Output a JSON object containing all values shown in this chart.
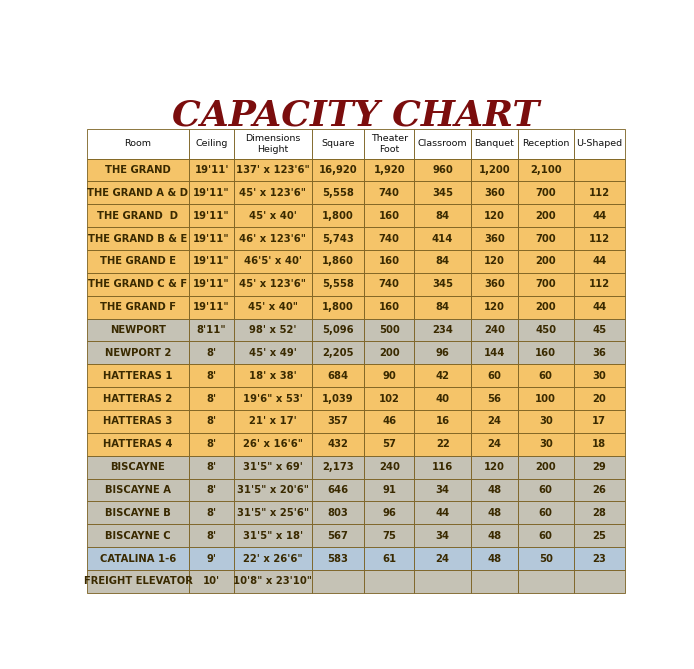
{
  "title": "CAPACITY CHART",
  "title_color": "#7B0D0D",
  "title_fontsize": 26,
  "header_col_names": [
    "Room",
    "Ceiling",
    "Dimensions\nHeight",
    "Square",
    "Theater\nFoot",
    "Classroom",
    "Banquet",
    "Reception",
    "U-Shaped"
  ],
  "col_widths": [
    1.65,
    0.72,
    1.25,
    0.85,
    0.8,
    0.92,
    0.75,
    0.9,
    0.82
  ],
  "rows": [
    [
      "THE GRAND",
      "19'11'",
      "137' x 123'6\"",
      "16,920",
      "1,920",
      "960",
      "1,200",
      "2,100",
      ""
    ],
    [
      "THE GRAND A & D",
      "19'11\"",
      "45' x 123'6\"",
      "5,558",
      "740",
      "345",
      "360",
      "700",
      "112"
    ],
    [
      "THE GRAND  D",
      "19'11\"",
      "45' x 40'",
      "1,800",
      "160",
      "84",
      "120",
      "200",
      "44"
    ],
    [
      "THE GRAND B & E",
      "19'11\"",
      "46' x 123'6\"",
      "5,743",
      "740",
      "414",
      "360",
      "700",
      "112"
    ],
    [
      "THE GRAND E",
      "19'11\"",
      "46'5' x 40'",
      "1,860",
      "160",
      "84",
      "120",
      "200",
      "44"
    ],
    [
      "THE GRAND C & F",
      "19'11\"",
      "45' x 123'6\"",
      "5,558",
      "740",
      "345",
      "360",
      "700",
      "112"
    ],
    [
      "THE GRAND F",
      "19'11\"",
      "45' x 40\"",
      "1,800",
      "160",
      "84",
      "120",
      "200",
      "44"
    ],
    [
      "NEWPORT",
      "8'11\"",
      "98' x 52'",
      "5,096",
      "500",
      "234",
      "240",
      "450",
      "45"
    ],
    [
      "NEWPORT 2",
      "8'",
      "45' x 49'",
      "2,205",
      "200",
      "96",
      "144",
      "160",
      "36"
    ],
    [
      "HATTERAS 1",
      "8'",
      "18' x 38'",
      "684",
      "90",
      "42",
      "60",
      "60",
      "30"
    ],
    [
      "HATTERAS 2",
      "8'",
      "19'6\" x 53'",
      "1,039",
      "102",
      "40",
      "56",
      "100",
      "20"
    ],
    [
      "HATTERAS 3",
      "8'",
      "21' x 17'",
      "357",
      "46",
      "16",
      "24",
      "30",
      "17"
    ],
    [
      "HATTERAS 4",
      "8'",
      "26' x 16'6\"",
      "432",
      "57",
      "22",
      "24",
      "30",
      "18"
    ],
    [
      "BISCAYNE",
      "8'",
      "31'5\" x 69'",
      "2,173",
      "240",
      "116",
      "120",
      "200",
      "29"
    ],
    [
      "BISCAYNE A",
      "8'",
      "31'5\" x 20'6\"",
      "646",
      "91",
      "34",
      "48",
      "60",
      "26"
    ],
    [
      "BISCAYNE B",
      "8'",
      "31'5\" x 25'6\"",
      "803",
      "96",
      "44",
      "48",
      "60",
      "28"
    ],
    [
      "BISCAYNE C",
      "8'",
      "31'5\" x 18'",
      "567",
      "75",
      "34",
      "48",
      "60",
      "25"
    ],
    [
      "CATALINA 1-6",
      "9'",
      "22' x 26'6\"",
      "583",
      "61",
      "24",
      "48",
      "50",
      "23"
    ],
    [
      "FREIGHT ELEVATOR",
      "10'",
      "10'8\" x 23'10\"",
      "",
      "",
      "",
      "",
      "",
      ""
    ]
  ],
  "color_golden": "#F5C469",
  "color_gray": "#C5C2B5",
  "color_blue": "#B4C8DA",
  "color_header": "#FFFFFF",
  "color_border": "#7A6020",
  "color_text": "#3A2A00",
  "background": "#FFFFFF"
}
